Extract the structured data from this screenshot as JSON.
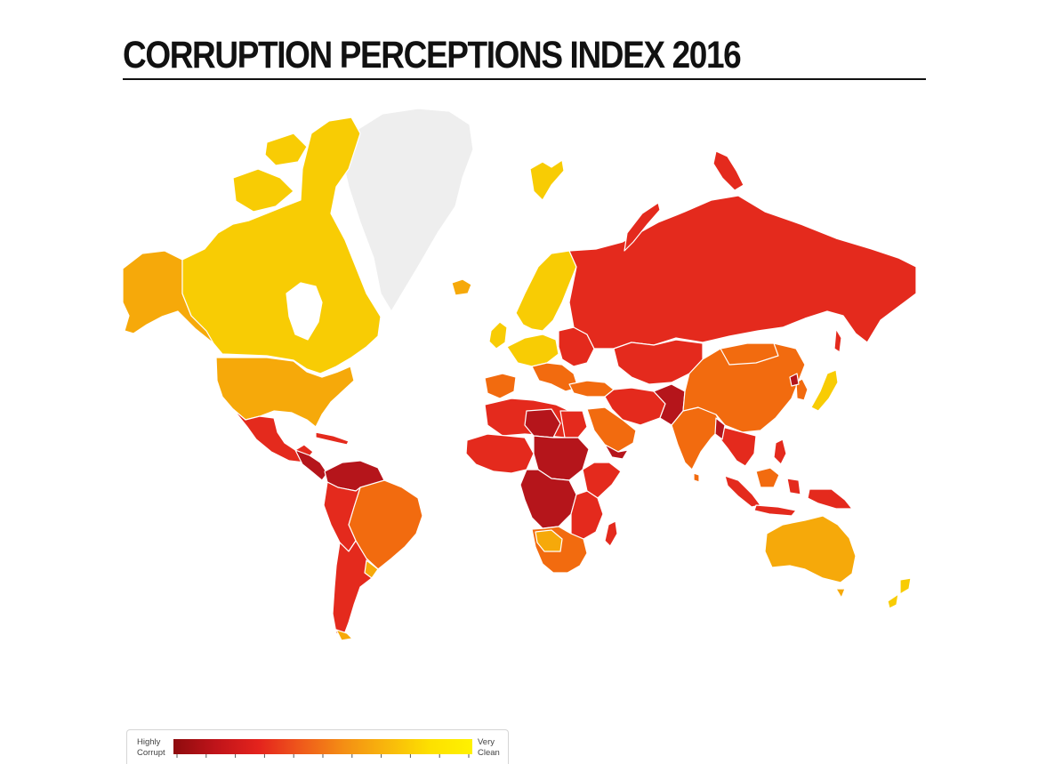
{
  "title": "CORRUPTION PERCEPTIONS INDEX 2016",
  "legend": {
    "low_label": "Highly\nCorrupt",
    "high_label": "Very\nClean",
    "scale_colors": [
      "#8e0b0e",
      "#c0141a",
      "#e4231d",
      "#ef5a1b",
      "#f48f14",
      "#f8b70c",
      "#fde000",
      "#fff200"
    ]
  },
  "palette": {
    "very_clean": "#f8cc04",
    "clean": "#f6a90a",
    "moderate": "#f26b0f",
    "corrupt": "#e42a1d",
    "highly_corrupt": "#b5151b",
    "no_data": "#eeeeee"
  }
}
